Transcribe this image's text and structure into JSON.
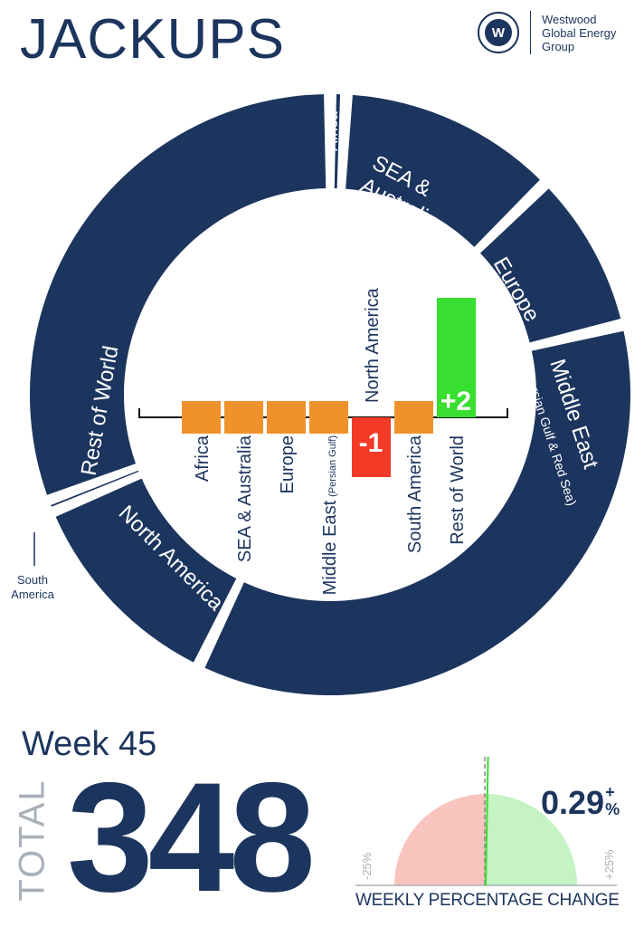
{
  "header": {
    "title": "JACKUPS",
    "logo_text": "Westwood Global Energy Group",
    "logo_mark": "W"
  },
  "chart_data": [
    {
      "type": "pie",
      "variant": "donut",
      "note_values": "segment sizes estimated from arc angles",
      "slices": [
        {
          "label": "Africa",
          "sub": "",
          "value": 3
        },
        {
          "label": "SEA &",
          "label2": "Australia",
          "sub": "",
          "value": 41
        },
        {
          "label": "Europe",
          "sub": "",
          "value": 30
        },
        {
          "label": "Middle East",
          "sub": "(Persian Gulf & Red Sea)",
          "value": 125
        },
        {
          "label": "North America",
          "sub": "",
          "value": 40
        },
        {
          "label": "South America",
          "sub": "",
          "value": 2
        },
        {
          "label": "Rest of World",
          "sub": "",
          "value": 107
        }
      ],
      "color": "#1c355e"
    },
    {
      "type": "bar",
      "categories": [
        "Africa",
        "SEA & Australia",
        "Europe",
        "Middle East",
        "North America",
        "South America",
        "Rest of World"
      ],
      "category_subs": [
        "",
        "",
        "",
        "(Persian Gulf)",
        "",
        "",
        ""
      ],
      "values": [
        0,
        0,
        0,
        0,
        -1,
        0,
        2
      ],
      "data_labels": [
        "",
        "",
        "",
        "",
        "-1",
        "",
        "+2"
      ],
      "colors": {
        "zero": "#f0922b",
        "negative": "#f23a27",
        "positive": "#38de30"
      }
    },
    {
      "type": "gauge",
      "value": 0.29,
      "range": [
        -25,
        25
      ],
      "min_label": "-25%",
      "max_label": "+25%",
      "value_label": "0.29",
      "value_sign": "+",
      "value_unit": "%",
      "label": "WEEKLY PERCENTAGE CHANGE",
      "colors": {
        "negative": "#f9c4bd",
        "positive": "#c5f3c4",
        "needle": "#38de30"
      }
    }
  ],
  "summary": {
    "week": "Week 45",
    "total_label": "TOTAL",
    "total": "348"
  }
}
